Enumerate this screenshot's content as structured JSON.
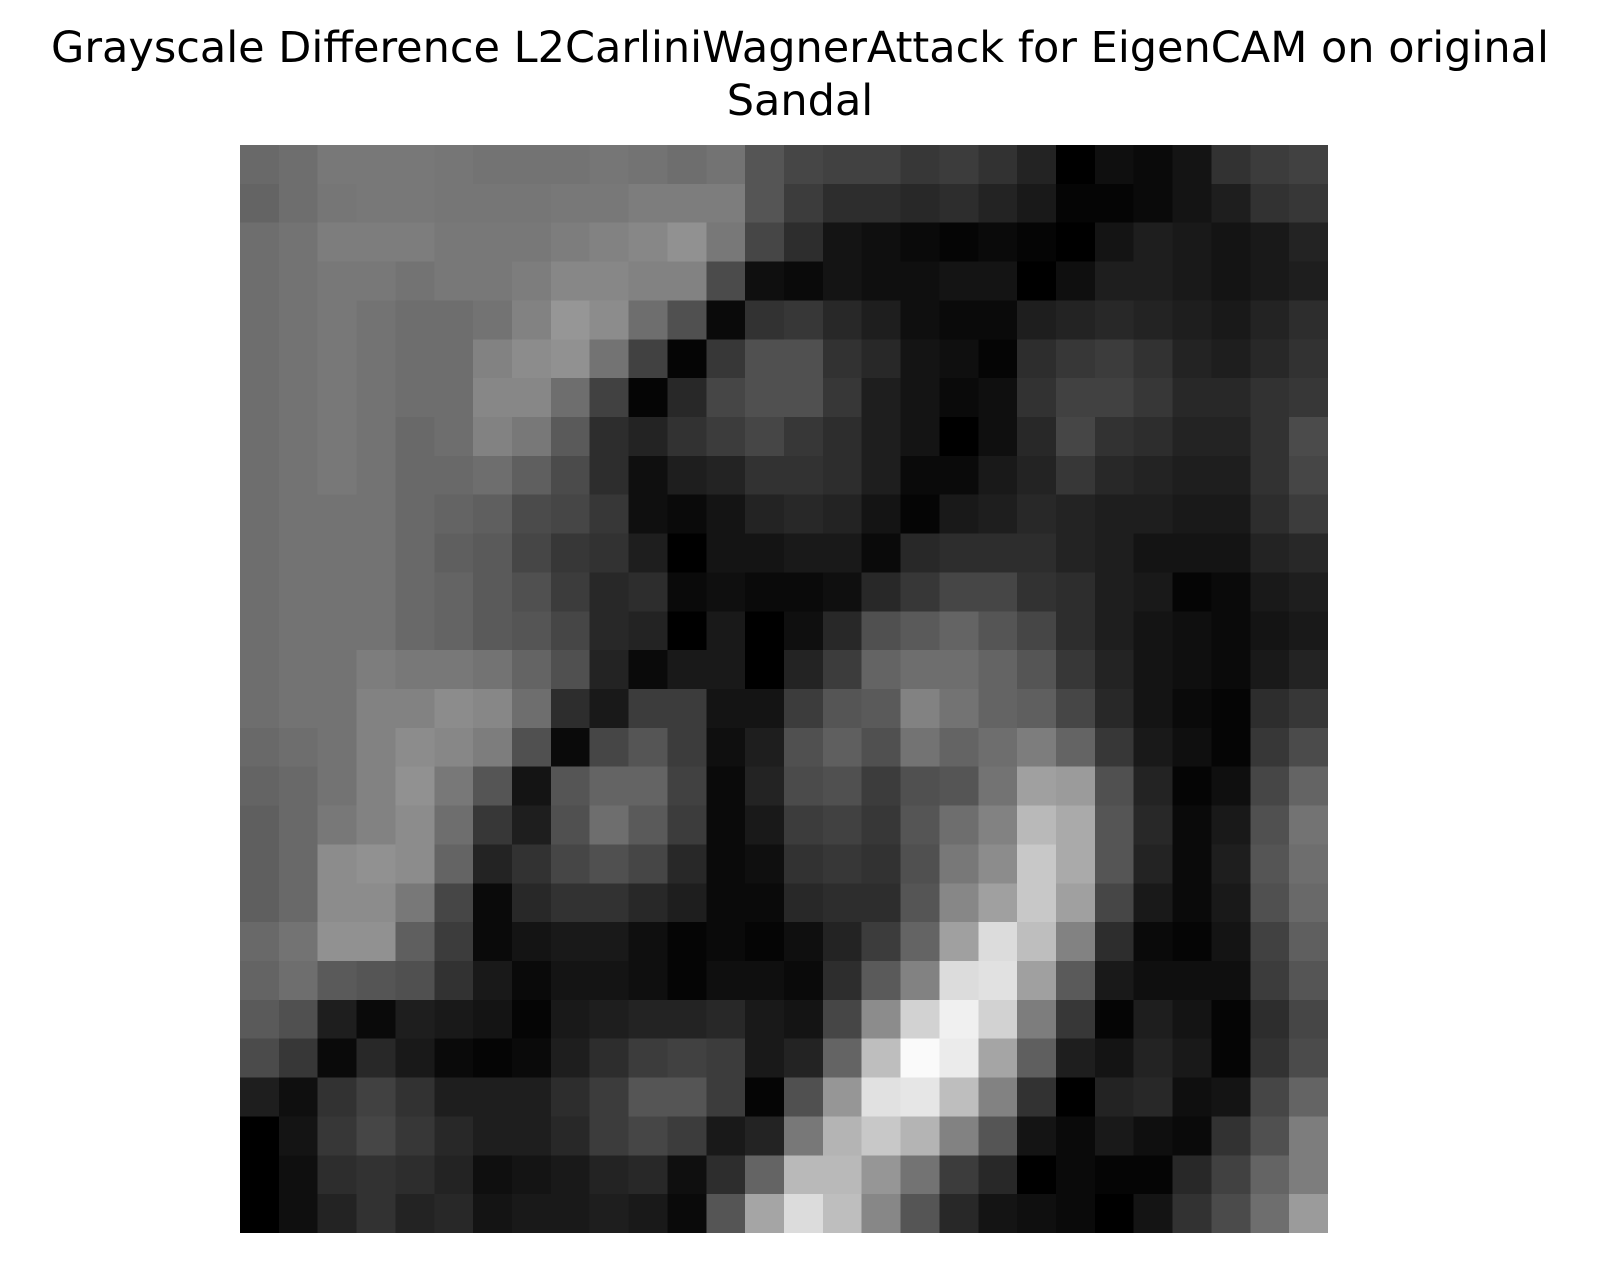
{
  "chart_data": {
    "type": "heatmap",
    "title": "Grayscale Difference L2CarliniWagnerAttack for EigenCAM on original Sandal",
    "values": [
      [
        105,
        110,
        120,
        120,
        120,
        118,
        115,
        115,
        115,
        118,
        115,
        110,
        115,
        85,
        70,
        65,
        65,
        55,
        60,
        50,
        35,
        0,
        15,
        10,
        20,
        50,
        60,
        65
      ],
      [
        100,
        110,
        118,
        120,
        120,
        118,
        118,
        118,
        120,
        120,
        125,
        125,
        125,
        85,
        60,
        45,
        45,
        40,
        45,
        35,
        25,
        5,
        5,
        10,
        20,
        30,
        50,
        55
      ],
      [
        110,
        115,
        125,
        125,
        125,
        120,
        120,
        120,
        125,
        130,
        135,
        145,
        120,
        70,
        45,
        20,
        15,
        10,
        5,
        10,
        5,
        0,
        20,
        30,
        25,
        20,
        25,
        35
      ],
      [
        110,
        115,
        120,
        120,
        115,
        120,
        120,
        125,
        135,
        135,
        130,
        130,
        75,
        15,
        10,
        20,
        15,
        15,
        20,
        20,
        0,
        15,
        30,
        30,
        25,
        20,
        25,
        30
      ],
      [
        110,
        115,
        120,
        115,
        110,
        110,
        115,
        130,
        150,
        140,
        110,
        80,
        10,
        50,
        55,
        40,
        30,
        15,
        10,
        10,
        30,
        35,
        40,
        35,
        30,
        25,
        35,
        45
      ],
      [
        110,
        115,
        120,
        115,
        110,
        110,
        130,
        140,
        145,
        115,
        65,
        5,
        55,
        80,
        80,
        50,
        40,
        20,
        15,
        5,
        45,
        55,
        60,
        50,
        35,
        30,
        40,
        50
      ],
      [
        110,
        115,
        120,
        115,
        110,
        110,
        135,
        135,
        110,
        65,
        5,
        40,
        70,
        80,
        80,
        55,
        30,
        20,
        10,
        15,
        50,
        65,
        65,
        55,
        40,
        40,
        50,
        55
      ],
      [
        110,
        115,
        120,
        115,
        105,
        110,
        130,
        120,
        90,
        45,
        35,
        50,
        60,
        70,
        55,
        45,
        30,
        20,
        0,
        15,
        40,
        70,
        50,
        45,
        35,
        35,
        50,
        75
      ],
      [
        110,
        115,
        120,
        115,
        105,
        105,
        110,
        95,
        75,
        45,
        15,
        30,
        35,
        50,
        50,
        45,
        30,
        10,
        10,
        25,
        35,
        55,
        40,
        35,
        30,
        30,
        50,
        70
      ],
      [
        110,
        115,
        115,
        115,
        105,
        100,
        95,
        75,
        70,
        55,
        15,
        10,
        20,
        35,
        40,
        35,
        20,
        5,
        25,
        30,
        40,
        35,
        30,
        30,
        25,
        25,
        45,
        60
      ],
      [
        110,
        115,
        115,
        115,
        105,
        95,
        90,
        70,
        55,
        50,
        30,
        0,
        20,
        20,
        25,
        25,
        10,
        40,
        45,
        45,
        45,
        35,
        30,
        20,
        20,
        20,
        35,
        40
      ],
      [
        110,
        115,
        115,
        115,
        105,
        100,
        90,
        80,
        60,
        40,
        45,
        10,
        15,
        10,
        10,
        15,
        40,
        55,
        70,
        70,
        50,
        45,
        30,
        25,
        5,
        10,
        25,
        30
      ],
      [
        110,
        115,
        115,
        115,
        105,
        100,
        90,
        85,
        70,
        40,
        35,
        0,
        25,
        0,
        15,
        40,
        80,
        90,
        100,
        85,
        70,
        45,
        30,
        20,
        15,
        10,
        20,
        25
      ],
      [
        110,
        115,
        115,
        125,
        120,
        120,
        115,
        100,
        80,
        35,
        10,
        25,
        25,
        0,
        35,
        60,
        100,
        110,
        110,
        100,
        85,
        55,
        35,
        20,
        15,
        10,
        25,
        35
      ],
      [
        110,
        115,
        115,
        130,
        130,
        140,
        135,
        110,
        45,
        25,
        60,
        60,
        20,
        20,
        60,
        85,
        90,
        130,
        115,
        100,
        95,
        70,
        40,
        20,
        10,
        5,
        45,
        55
      ],
      [
        105,
        110,
        115,
        130,
        140,
        135,
        125,
        80,
        10,
        70,
        85,
        60,
        15,
        30,
        80,
        95,
        80,
        115,
        100,
        110,
        125,
        100,
        55,
        25,
        15,
        5,
        55,
        75
      ],
      [
        100,
        105,
        115,
        130,
        145,
        120,
        85,
        20,
        85,
        100,
        100,
        65,
        10,
        35,
        75,
        80,
        60,
        80,
        85,
        115,
        160,
        155,
        80,
        35,
        5,
        15,
        70,
        100
      ],
      [
        95,
        105,
        120,
        130,
        140,
        110,
        55,
        30,
        80,
        110,
        90,
        60,
        10,
        25,
        60,
        65,
        55,
        85,
        110,
        130,
        185,
        170,
        85,
        40,
        10,
        25,
        80,
        115
      ],
      [
        95,
        105,
        140,
        145,
        140,
        100,
        35,
        50,
        70,
        80,
        70,
        40,
        10,
        15,
        50,
        55,
        50,
        80,
        120,
        140,
        200,
        170,
        85,
        35,
        10,
        30,
        85,
        110
      ],
      [
        95,
        105,
        140,
        140,
        120,
        70,
        10,
        40,
        50,
        50,
        40,
        30,
        10,
        10,
        40,
        45,
        45,
        85,
        135,
        160,
        200,
        160,
        70,
        25,
        10,
        25,
        80,
        105
      ],
      [
        105,
        115,
        145,
        145,
        95,
        60,
        10,
        20,
        25,
        25,
        15,
        5,
        10,
        5,
        15,
        35,
        60,
        100,
        160,
        220,
        190,
        130,
        45,
        10,
        5,
        20,
        65,
        95
      ],
      [
        100,
        110,
        90,
        85,
        80,
        50,
        25,
        10,
        20,
        20,
        15,
        5,
        15,
        15,
        10,
        45,
        90,
        130,
        220,
        225,
        160,
        90,
        25,
        15,
        15,
        15,
        60,
        85
      ],
      [
        90,
        80,
        30,
        10,
        30,
        25,
        20,
        5,
        25,
        30,
        35,
        35,
        40,
        25,
        20,
        70,
        140,
        210,
        240,
        210,
        125,
        55,
        5,
        30,
        20,
        5,
        45,
        70
      ],
      [
        75,
        55,
        10,
        40,
        25,
        10,
        5,
        10,
        30,
        45,
        60,
        65,
        60,
        25,
        35,
        100,
        190,
        250,
        235,
        165,
        95,
        30,
        20,
        35,
        25,
        5,
        50,
        75
      ],
      [
        30,
        15,
        50,
        65,
        50,
        30,
        30,
        30,
        45,
        60,
        85,
        85,
        60,
        5,
        80,
        150,
        225,
        230,
        190,
        130,
        50,
        0,
        35,
        40,
        15,
        20,
        70,
        100
      ],
      [
        0,
        20,
        55,
        70,
        55,
        40,
        30,
        30,
        40,
        60,
        70,
        60,
        25,
        35,
        120,
        180,
        200,
        180,
        130,
        85,
        20,
        10,
        25,
        15,
        10,
        50,
        80,
        125
      ],
      [
        0,
        15,
        45,
        50,
        45,
        35,
        15,
        20,
        25,
        35,
        40,
        15,
        45,
        100,
        185,
        185,
        150,
        115,
        60,
        40,
        0,
        10,
        5,
        5,
        40,
        65,
        100,
        125
      ],
      [
        0,
        15,
        35,
        50,
        35,
        40,
        20,
        25,
        25,
        30,
        25,
        10,
        85,
        165,
        220,
        190,
        135,
        85,
        40,
        20,
        15,
        10,
        0,
        20,
        50,
        75,
        110,
        155
      ]
    ]
  }
}
